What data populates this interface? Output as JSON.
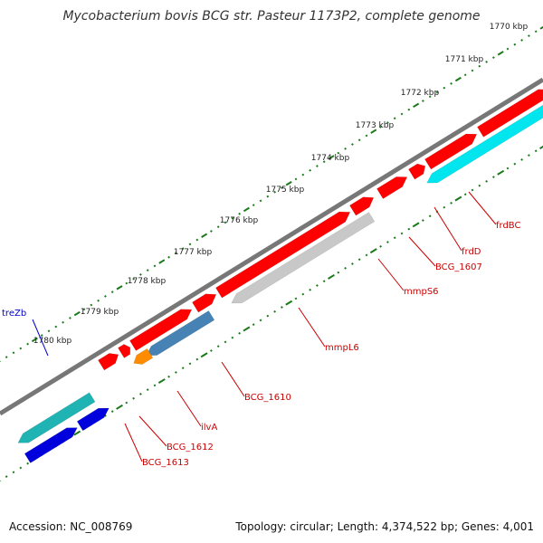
{
  "title": "Mycobacterium bovis BCG str. Pasteur 1173P2, complete genome",
  "footer": {
    "accession": "Accession: NC_008769",
    "summary": "Topology: circular; Length: 4,374,522 bp; Genes: 4,001"
  },
  "colors": {
    "backbone": "#777777",
    "tick_major": "#1a7a1a",
    "tick_minor": "#1a7a1a",
    "kbp_label": "#222222",
    "label_red": "#cc0000",
    "label_blue": "#0000cc",
    "gene_red": "#ff0000",
    "gene_cyan": "#00e5ee",
    "gene_teal": "#1fb3b3",
    "gene_blue": "#0000dd",
    "gene_steel": "#4682b4",
    "gene_orange": "#ff8c00",
    "gene_grey": "#c8c8c8"
  },
  "ticks": {
    "labels": [
      "1770 kbp",
      "1771 kbp",
      "1772 kbp",
      "1773 kbp",
      "1774 kbp",
      "1775 kbp",
      "1776 kbp",
      "1777 kbp",
      "1778 kbp",
      "1779 kbp",
      "1780 kbp"
    ]
  },
  "gene_labels": [
    "frdBC",
    "frdD",
    "BCG_1607",
    "mmpS6",
    "mmpL6",
    "BCG_1610",
    "ilvA",
    "BCG_1612",
    "BCG_1613",
    "treZb"
  ]
}
